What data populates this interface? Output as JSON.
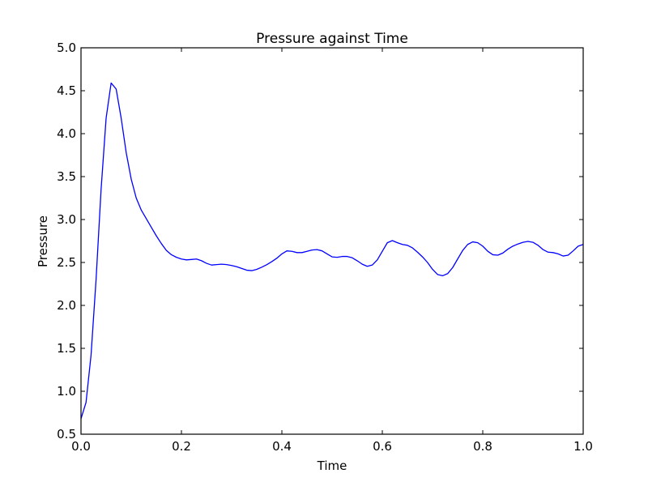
{
  "chart_data": {
    "type": "line",
    "title": "Pressure against Time",
    "xlabel": "Time",
    "ylabel": "Pressure",
    "xlim": [
      0.0,
      1.0
    ],
    "ylim": [
      0.5,
      5.0
    ],
    "xticks": [
      "0.0",
      "0.2",
      "0.4",
      "0.6",
      "0.8",
      "1.0"
    ],
    "xtick_values": [
      0.0,
      0.2,
      0.4,
      0.6,
      0.8,
      1.0
    ],
    "yticks": [
      "0.5",
      "1.0",
      "1.5",
      "2.0",
      "2.5",
      "3.0",
      "3.5",
      "4.0",
      "4.5",
      "5.0"
    ],
    "ytick_values": [
      0.5,
      1.0,
      1.5,
      2.0,
      2.5,
      3.0,
      3.5,
      4.0,
      4.5,
      5.0
    ],
    "grid": false,
    "series": [
      {
        "name": "Pressure",
        "color": "#0000ff",
        "x_start": 0.0,
        "x_step": 0.01,
        "values": [
          0.68,
          0.87,
          1.42,
          2.3,
          3.35,
          4.18,
          4.59,
          4.52,
          4.18,
          3.78,
          3.47,
          3.25,
          3.11,
          3.01,
          2.91,
          2.81,
          2.72,
          2.64,
          2.59,
          2.56,
          2.54,
          2.53,
          2.535,
          2.54,
          2.52,
          2.49,
          2.47,
          2.475,
          2.48,
          2.475,
          2.465,
          2.45,
          2.43,
          2.41,
          2.405,
          2.42,
          2.445,
          2.475,
          2.51,
          2.55,
          2.6,
          2.635,
          2.63,
          2.615,
          2.615,
          2.63,
          2.645,
          2.65,
          2.635,
          2.6,
          2.565,
          2.56,
          2.57,
          2.57,
          2.555,
          2.52,
          2.48,
          2.455,
          2.47,
          2.53,
          2.63,
          2.73,
          2.755,
          2.73,
          2.71,
          2.7,
          2.67,
          2.62,
          2.565,
          2.5,
          2.42,
          2.36,
          2.345,
          2.37,
          2.44,
          2.54,
          2.64,
          2.71,
          2.74,
          2.73,
          2.69,
          2.63,
          2.59,
          2.585,
          2.61,
          2.655,
          2.69,
          2.715,
          2.735,
          2.745,
          2.735,
          2.7,
          2.65,
          2.62,
          2.615,
          2.6,
          2.575,
          2.585,
          2.635,
          2.69,
          2.71
        ]
      }
    ]
  }
}
